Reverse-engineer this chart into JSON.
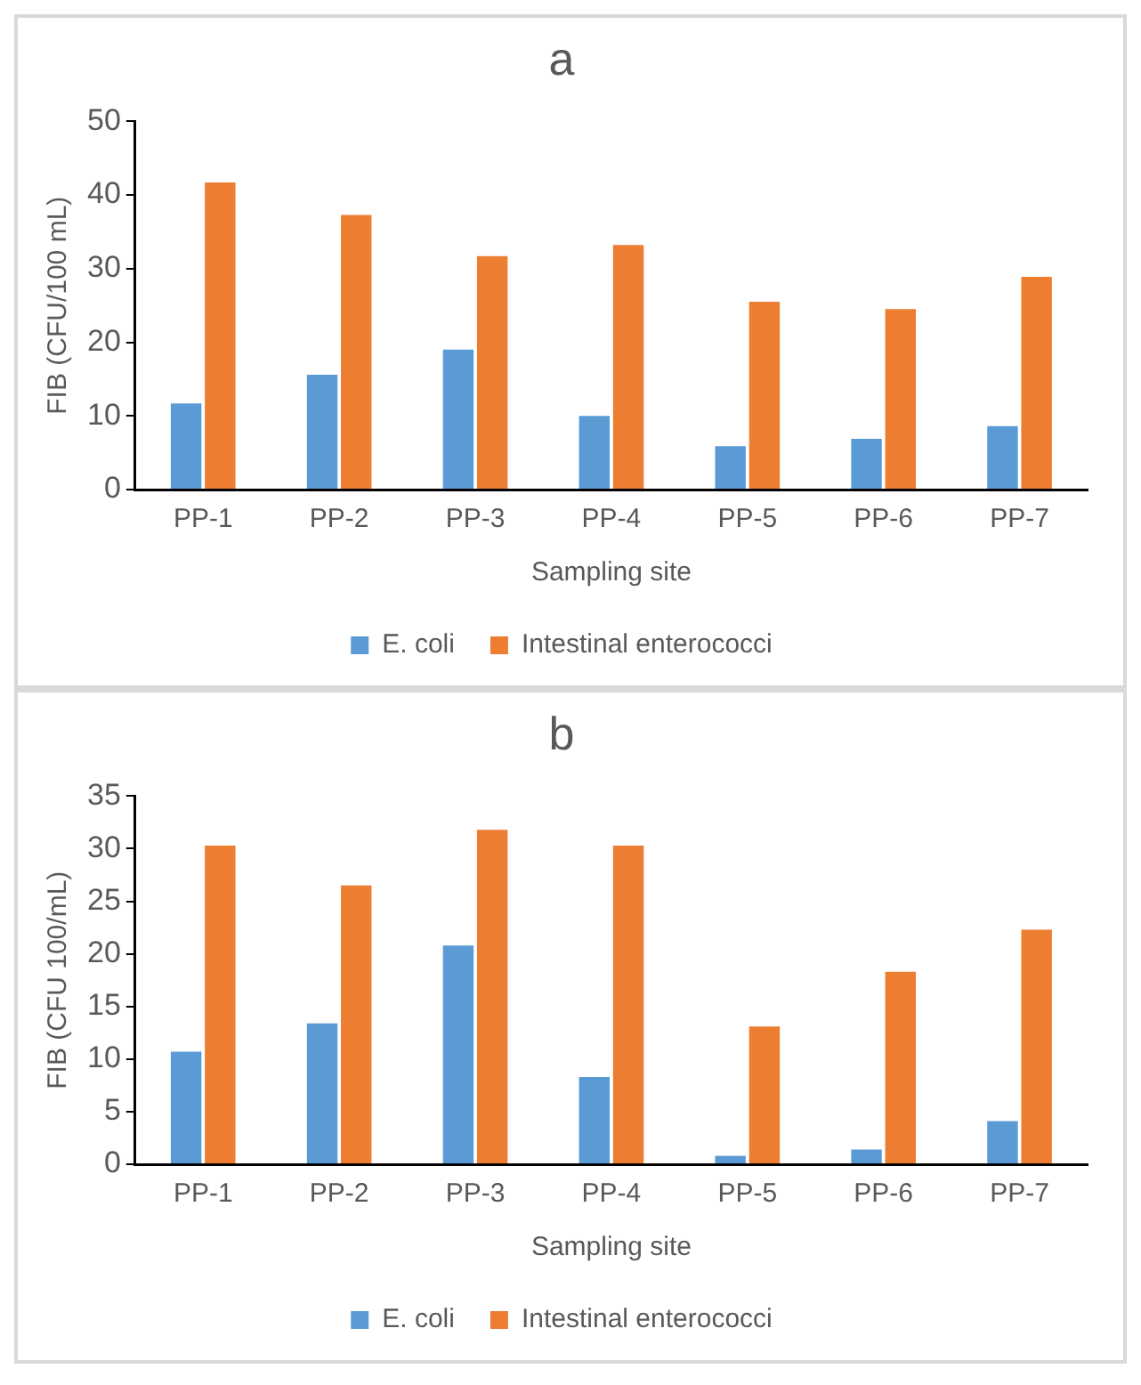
{
  "chart_data": [
    {
      "type": "bar",
      "title": "a",
      "xlabel": "Sampling site",
      "ylabel": "FIB (CFU/100 mL)",
      "categories": [
        "PP-1",
        "PP-2",
        "PP-3",
        "PP-4",
        "PP-5",
        "PP-6",
        "PP-7"
      ],
      "series": [
        {
          "name": "E. coli",
          "color": "#5b9bd5",
          "values": [
            11.7,
            15.6,
            19.0,
            10.0,
            5.9,
            6.9,
            8.6
          ]
        },
        {
          "name": "Intestinal enterococci",
          "color": "#ed7d31",
          "values": [
            41.7,
            37.3,
            31.7,
            33.2,
            25.5,
            24.5,
            28.9
          ]
        }
      ],
      "ylim": [
        0,
        50
      ],
      "yticks": [
        0,
        10,
        20,
        30,
        40,
        50
      ],
      "grid": false,
      "legend": "bottom"
    },
    {
      "type": "bar",
      "title": "b",
      "xlabel": "Sampling site",
      "ylabel": "FIB (CFU 100/mL)",
      "categories": [
        "PP-1",
        "PP-2",
        "PP-3",
        "PP-4",
        "PP-5",
        "PP-6",
        "PP-7"
      ],
      "series": [
        {
          "name": "E. coli",
          "color": "#5b9bd5",
          "values": [
            10.7,
            13.4,
            20.8,
            8.3,
            0.8,
            1.4,
            4.1
          ]
        },
        {
          "name": "Intestinal enterococci",
          "color": "#ed7d31",
          "values": [
            30.3,
            26.5,
            31.8,
            30.3,
            13.1,
            18.3,
            22.3
          ]
        }
      ],
      "ylim": [
        0,
        35
      ],
      "yticks": [
        0,
        5,
        10,
        15,
        20,
        25,
        30,
        35
      ],
      "grid": false,
      "legend": "bottom"
    }
  ]
}
